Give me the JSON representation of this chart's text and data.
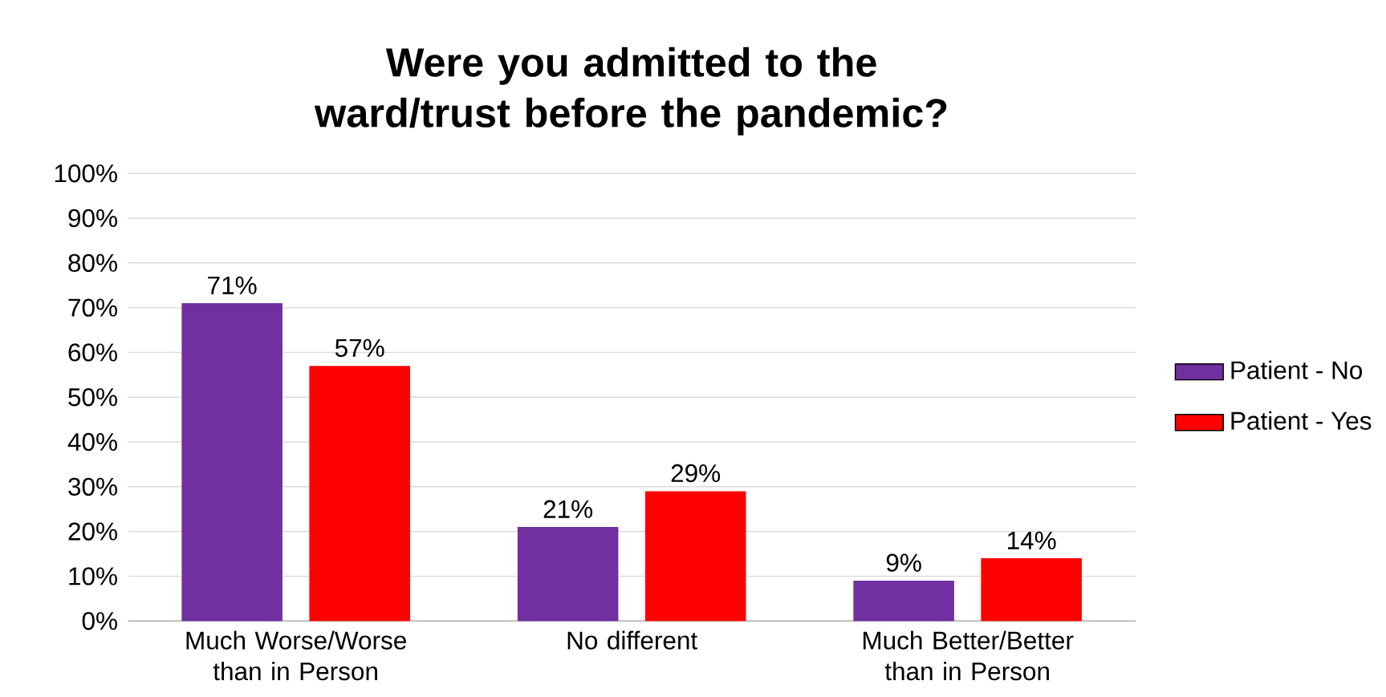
{
  "chart_data": {
    "type": "bar",
    "title": "Were you admitted to the ward/trust before the pandemic?",
    "categories": [
      "Much Worse/Worse than in Person",
      "No different",
      "Much Better/Better than in Person"
    ],
    "series": [
      {
        "name": "Patient - No",
        "color": "#7030a0",
        "values": [
          71,
          21,
          9
        ],
        "value_labels": [
          "71%",
          "21%",
          "9%"
        ]
      },
      {
        "name": "Patient - Yes",
        "color": "#ff0000",
        "values": [
          57,
          29,
          14
        ],
        "value_labels": [
          "57%",
          "29%",
          "14%"
        ]
      }
    ],
    "ylim": [
      0,
      100
    ],
    "yticks": [
      {
        "value": 0,
        "label": "0%"
      },
      {
        "value": 10,
        "label": "10%"
      },
      {
        "value": 20,
        "label": "20%"
      },
      {
        "value": 30,
        "label": "30%"
      },
      {
        "value": 40,
        "label": "40%"
      },
      {
        "value": 50,
        "label": "50%"
      },
      {
        "value": 60,
        "label": "60%"
      },
      {
        "value": 70,
        "label": "70%"
      },
      {
        "value": 80,
        "label": "80%"
      },
      {
        "value": 90,
        "label": "90%"
      },
      {
        "value": 100,
        "label": "100%"
      }
    ],
    "grid": "y",
    "legend": "right"
  }
}
